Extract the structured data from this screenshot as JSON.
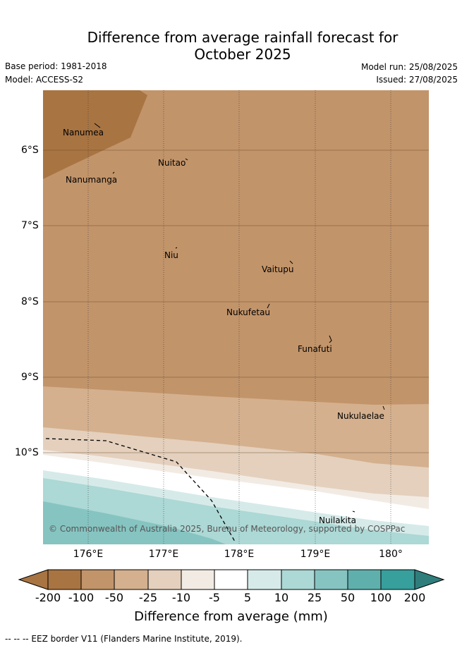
{
  "title_line1": "Difference from average rainfall forecast for",
  "title_line2": "October 2025",
  "base_period": "Base period: 1981-2018",
  "model": "Model: ACCESS-S2",
  "model_run": "Model run: 25/08/2025",
  "issued": "Issued: 27/08/2025",
  "lat_labels": [
    "6°S",
    "7°S",
    "8°S",
    "9°S",
    "10°S"
  ],
  "lon_labels": [
    "176°E",
    "177°E",
    "178°E",
    "179°E",
    "180°"
  ],
  "places": {
    "nanumea": "Nanumea",
    "nuitao": "Nuitao",
    "nanumanga": "Nanumanga",
    "niu": "Niu",
    "vaitupu": "Vaitupu",
    "nukufetau": "Nukufetau",
    "funafuti": "Funafuti",
    "nukulaelae": "Nukulaelae",
    "nuilakita": "Nuilakita"
  },
  "copyright": "© Commonwealth of Australia 2025, Bureau of Meteorology, supported by COSPPac",
  "colorbar": {
    "ticks": [
      "-200",
      "-100",
      "-50",
      "-25",
      "-10",
      "-5",
      "5",
      "10",
      "25",
      "50",
      "100",
      "200"
    ],
    "colors": [
      "#a87442",
      "#c2946a",
      "#d4b08e",
      "#e4d0bd",
      "#f2ebe4",
      "#ffffff",
      "#d6ebe9",
      "#acd8d5",
      "#86c4c1",
      "#5fb0ad",
      "#379f9c",
      "#2f7e7c"
    ],
    "label": "Difference from average (mm)"
  },
  "footnote": "--  --  -- EEZ border V11 (Flanders Marine Institute, 2019)."
}
